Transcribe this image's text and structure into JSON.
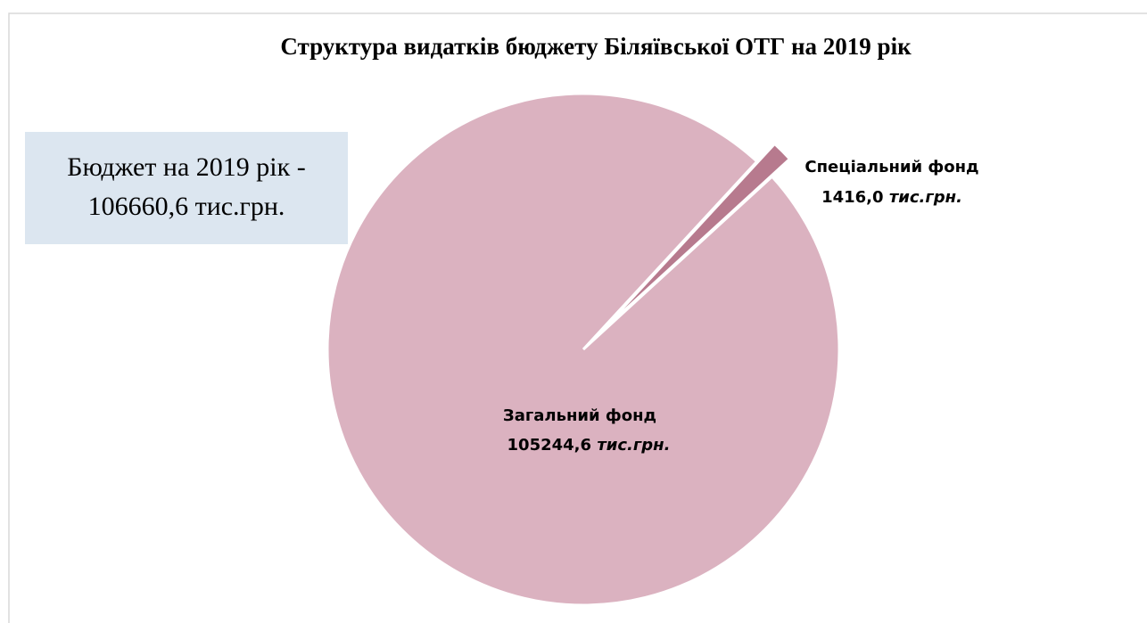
{
  "chart_data": {
    "type": "pie",
    "title": "Структура видатків бюджету Біляївської ОТГ на 2019 рік",
    "categories": [
      "Загальний фонд",
      "Спеціальний фонд"
    ],
    "values": [
      105244.6,
      1416.0
    ],
    "value_labels": [
      "105244,6",
      "1416,0"
    ],
    "unit": "тис.грн.",
    "colors": [
      "#dbb2c0",
      "#b77a8e"
    ],
    "annotation": [
      "Бюджет на 2019 рік -",
      "106660,6  тис.грн."
    ]
  }
}
